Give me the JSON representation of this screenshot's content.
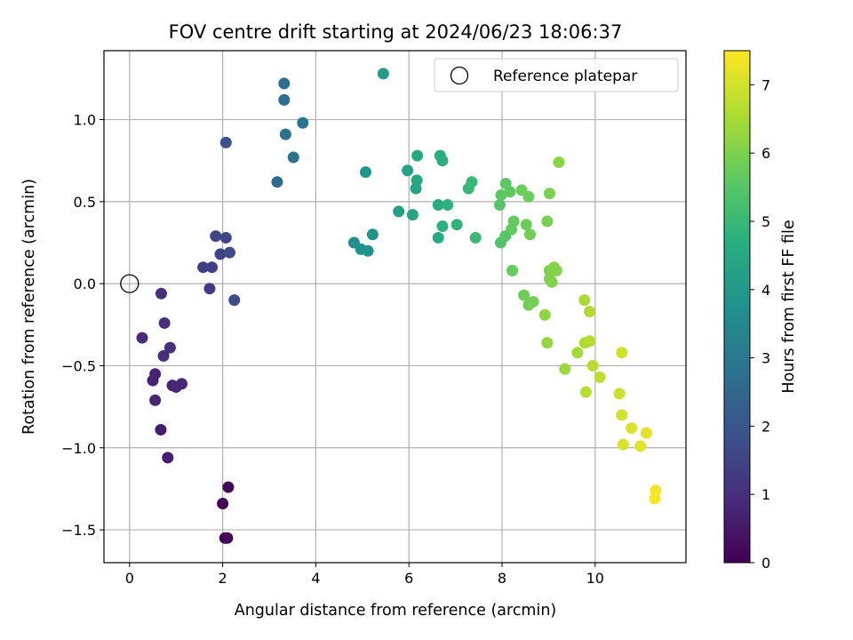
{
  "chart_data": {
    "type": "scatter",
    "title": "FOV centre drift starting at 2024/06/23 18:06:37",
    "xlabel": "Angular distance from reference (arcmin)",
    "ylabel": "Rotation from reference (arcmin)",
    "xlim": [
      -0.55,
      11.95
    ],
    "ylim": [
      -1.7,
      1.42
    ],
    "xticks": [
      0,
      2,
      4,
      6,
      8,
      10
    ],
    "xtick_labels": [
      "0",
      "2",
      "4",
      "6",
      "8",
      "10"
    ],
    "yticks": [
      -1.5,
      -1.0,
      -0.5,
      0.0,
      0.5,
      1.0
    ],
    "ytick_labels": [
      "−1.5",
      "−1.0",
      "−0.5",
      "0.0",
      "0.5",
      "1.0"
    ],
    "grid": true,
    "colormap": "viridis",
    "colorbar": {
      "label": "Hours from first FF file",
      "range": [
        0,
        7.5
      ],
      "ticks": [
        0,
        1,
        2,
        3,
        4,
        5,
        6,
        7
      ],
      "tick_labels": [
        "0",
        "1",
        "2",
        "3",
        "4",
        "5",
        "6",
        "7"
      ]
    },
    "legend": {
      "position": "top-right",
      "entries": [
        "Reference platepar"
      ]
    },
    "reference_point": {
      "x": 0,
      "y": 0,
      "marker": "open-circle"
    },
    "series": [
      {
        "points": [
          [
            2.0,
            -1.34,
            0.05
          ],
          [
            2.05,
            -1.55,
            0.08
          ],
          [
            2.1,
            -1.55,
            0.1
          ],
          [
            2.12,
            -1.24,
            0.12
          ],
          [
            0.67,
            -0.89,
            0.6
          ],
          [
            0.82,
            -1.06,
            0.62
          ],
          [
            0.5,
            -0.59,
            0.72
          ],
          [
            0.55,
            -0.55,
            0.75
          ],
          [
            0.55,
            -0.71,
            0.78
          ],
          [
            0.92,
            -0.62,
            0.8
          ],
          [
            1.0,
            -0.63,
            0.82
          ],
          [
            1.12,
            -0.61,
            0.85
          ],
          [
            0.27,
            -0.33,
            0.9
          ],
          [
            0.73,
            -0.44,
            0.95
          ],
          [
            0.87,
            -0.39,
            0.98
          ],
          [
            0.75,
            -0.24,
            1.0
          ],
          [
            0.68,
            -0.06,
            1.05
          ],
          [
            1.72,
            -0.03,
            1.3
          ],
          [
            1.58,
            0.1,
            1.4
          ],
          [
            1.77,
            0.1,
            1.45
          ],
          [
            1.95,
            0.18,
            1.5
          ],
          [
            2.07,
            0.28,
            1.55
          ],
          [
            1.85,
            0.29,
            1.6
          ],
          [
            2.15,
            0.19,
            1.7
          ],
          [
            2.25,
            -0.1,
            1.75
          ],
          [
            2.07,
            0.86,
            1.9
          ],
          [
            3.17,
            0.62,
            2.6
          ],
          [
            3.32,
            1.22,
            2.7
          ],
          [
            3.32,
            1.12,
            2.75
          ],
          [
            3.35,
            0.91,
            2.8
          ],
          [
            3.52,
            0.77,
            2.85
          ],
          [
            3.72,
            0.98,
            2.9
          ],
          [
            4.82,
            0.25,
            3.7
          ],
          [
            4.97,
            0.21,
            3.75
          ],
          [
            5.12,
            0.2,
            3.8
          ],
          [
            5.22,
            0.3,
            3.85
          ],
          [
            5.07,
            0.68,
            3.9
          ],
          [
            5.45,
            1.28,
            4.1
          ],
          [
            5.78,
            0.44,
            4.2
          ],
          [
            5.97,
            0.69,
            4.3
          ],
          [
            6.08,
            0.42,
            4.35
          ],
          [
            6.15,
            0.58,
            4.4
          ],
          [
            6.17,
            0.63,
            4.45
          ],
          [
            6.18,
            0.78,
            4.5
          ],
          [
            6.63,
            0.28,
            4.6
          ],
          [
            6.63,
            0.48,
            4.65
          ],
          [
            6.67,
            0.78,
            4.7
          ],
          [
            6.72,
            0.75,
            4.72
          ],
          [
            6.72,
            0.35,
            4.75
          ],
          [
            6.83,
            0.48,
            4.8
          ],
          [
            7.03,
            0.36,
            4.85
          ],
          [
            7.28,
            0.58,
            4.95
          ],
          [
            7.35,
            0.62,
            5.0
          ],
          [
            7.43,
            0.28,
            5.05
          ],
          [
            7.97,
            0.25,
            5.4
          ],
          [
            7.95,
            0.48,
            5.45
          ],
          [
            8.07,
            0.29,
            5.5
          ],
          [
            7.98,
            0.54,
            5.55
          ],
          [
            8.08,
            0.61,
            5.6
          ],
          [
            8.17,
            0.56,
            5.62
          ],
          [
            8.2,
            0.33,
            5.65
          ],
          [
            8.25,
            0.38,
            5.68
          ],
          [
            8.22,
            0.08,
            5.7
          ],
          [
            8.42,
            0.57,
            5.75
          ],
          [
            8.47,
            -0.07,
            5.78
          ],
          [
            8.52,
            0.36,
            5.8
          ],
          [
            8.57,
            0.53,
            5.82
          ],
          [
            8.6,
            0.3,
            5.85
          ],
          [
            8.57,
            -0.13,
            5.88
          ],
          [
            8.67,
            -0.11,
            5.9
          ],
          [
            8.97,
            0.38,
            5.95
          ],
          [
            9.02,
            0.55,
            5.98
          ],
          [
            9.02,
            0.08,
            6.0
          ],
          [
            9.02,
            0.03,
            6.02
          ],
          [
            9.07,
            0.01,
            6.05
          ],
          [
            9.12,
            0.1,
            6.07
          ],
          [
            9.17,
            0.08,
            6.1
          ],
          [
            9.22,
            0.74,
            6.15
          ],
          [
            8.92,
            -0.19,
            6.2
          ],
          [
            8.97,
            -0.36,
            6.25
          ],
          [
            9.35,
            -0.52,
            6.35
          ],
          [
            9.62,
            -0.42,
            6.45
          ],
          [
            9.77,
            -0.1,
            6.5
          ],
          [
            9.78,
            -0.36,
            6.55
          ],
          [
            9.88,
            -0.17,
            6.6
          ],
          [
            9.88,
            -0.35,
            6.62
          ],
          [
            9.8,
            -0.66,
            6.65
          ],
          [
            9.95,
            -0.5,
            6.7
          ],
          [
            10.1,
            -0.57,
            6.75
          ],
          [
            10.52,
            -0.67,
            6.9
          ],
          [
            10.57,
            -0.42,
            6.95
          ],
          [
            10.57,
            -0.8,
            7.0
          ],
          [
            10.6,
            -0.98,
            7.05
          ],
          [
            10.78,
            -0.88,
            7.1
          ],
          [
            10.97,
            -0.99,
            7.15
          ],
          [
            11.1,
            -0.91,
            7.2
          ],
          [
            11.3,
            -1.26,
            7.4
          ],
          [
            11.28,
            -1.31,
            7.45
          ]
        ]
      }
    ]
  }
}
